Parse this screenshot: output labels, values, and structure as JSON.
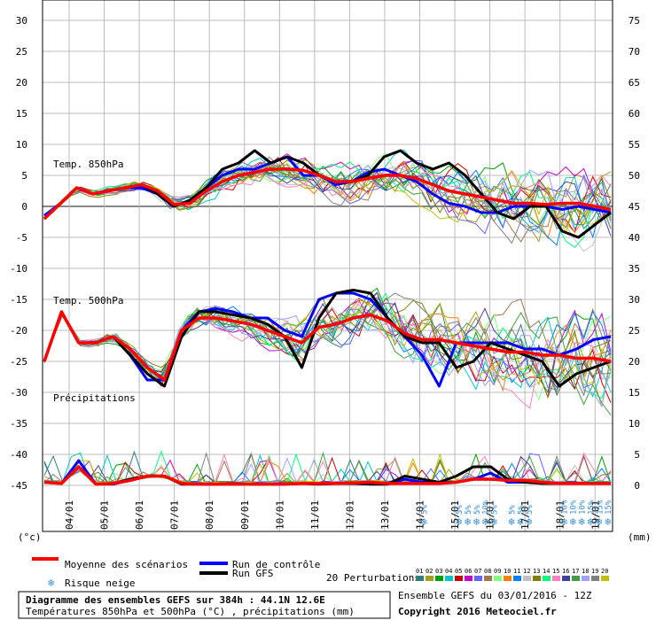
{
  "chart_data": {
    "type": "line",
    "left_axis_ticks": [
      "30",
      "25",
      "20",
      "15",
      "10",
      "5",
      "0",
      "-5",
      "-10",
      "-15",
      "-20",
      "-25",
      "-30",
      "-35",
      "-40",
      "-45"
    ],
    "right_axis_ticks": [
      "75",
      "70",
      "65",
      "60",
      "55",
      "50",
      "45",
      "40",
      "35",
      "30",
      "25",
      "20",
      "15",
      "10",
      "5",
      "0"
    ],
    "x_tick_labels": [
      "04/01",
      "05/01",
      "06/01",
      "07/01",
      "08/01",
      "09/01",
      "10/01",
      "11/01",
      "12/01",
      "13/01",
      "14/01",
      "15/01",
      "16/01",
      "17/01",
      "18/01",
      "19/01"
    ],
    "left_unit": "(°c)",
    "right_unit": "(mm)",
    "section_labels": {
      "t850": "Temp. 850hPa",
      "t500": "Temp. 500hPa",
      "precip": "Précipitations"
    },
    "snow_risk": [
      {
        "day": 10.0,
        "pct": "5%"
      },
      {
        "day": 11.0,
        "pct": "5%"
      },
      {
        "day": 11.25,
        "pct": "5%"
      },
      {
        "day": 11.5,
        "pct": "5%"
      },
      {
        "day": 11.75,
        "pct": "10%"
      },
      {
        "day": 12.0,
        "pct": "5%"
      },
      {
        "day": 12.5,
        "pct": "5%"
      },
      {
        "day": 12.75,
        "pct": "5%"
      },
      {
        "day": 13.0,
        "pct": "5%"
      },
      {
        "day": 14.0,
        "pct": "10%"
      },
      {
        "day": 14.25,
        "pct": "10%"
      },
      {
        "day": 14.5,
        "pct": "10%"
      },
      {
        "day": 14.75,
        "pct": "15%"
      },
      {
        "day": 15.0,
        "pct": "15%"
      },
      {
        "day": 15.25,
        "pct": "15%"
      }
    ],
    "series": [
      {
        "name": "Moyenne des scénarios",
        "color": "#ff0000",
        "t850": [
          -2,
          0.5,
          3,
          2,
          2.5,
          3,
          3.5,
          2.5,
          0.3,
          0.5,
          2.5,
          4,
          5,
          5.5,
          6,
          6,
          5.8,
          5,
          4,
          4,
          4.5,
          5,
          5,
          4.5,
          3.5,
          2.5,
          2,
          1.5,
          1,
          0.5,
          0.5,
          0.3,
          0.5,
          0.5,
          0,
          -0.5
        ],
        "t500": [
          -25,
          -17,
          -22,
          -22,
          -21,
          -23,
          -26,
          -28,
          -20,
          -18,
          -18,
          -18.5,
          -19,
          -20,
          -21,
          -22,
          -19.5,
          -19,
          -18,
          -17.5,
          -18.5,
          -20.5,
          -21.5,
          -21.5,
          -22,
          -22.5,
          -23,
          -23.5,
          -23.5,
          -24,
          -24,
          -24.5,
          -24.5,
          -25
        ],
        "precip": [
          0.5,
          0.3,
          3,
          0.2,
          0.3,
          0.8,
          1.5,
          1.5,
          0.3,
          0.2,
          0.2,
          0.2,
          0.2,
          0.2,
          0.2,
          0.3,
          0.3,
          0.3,
          0.4,
          0.5,
          0.3,
          0.3,
          0.3,
          0.3,
          0.5,
          1,
          1,
          0.8,
          0.8,
          0.5,
          0.3,
          0.3,
          0.3,
          0.3
        ]
      },
      {
        "name": "Run de contrôle",
        "color": "#0000ff",
        "t850": [
          -1.5,
          0.5,
          3,
          2,
          2.5,
          3,
          3,
          2,
          0,
          1,
          3,
          5,
          6,
          6,
          7,
          8,
          5,
          5,
          3.5,
          4,
          5.5,
          6,
          5,
          4,
          2,
          0.5,
          0,
          -1,
          -1,
          0,
          0,
          0,
          -0.5,
          0,
          -0.5,
          -1
        ],
        "t500": [
          -25,
          -17,
          -22,
          -22,
          -21,
          -24,
          -28,
          -28,
          -20,
          -17,
          -16.5,
          -17,
          -18,
          -18,
          -20,
          -21,
          -15,
          -14,
          -14,
          -15,
          -18,
          -21,
          -24,
          -29,
          -22,
          -22,
          -22,
          -22,
          -23,
          -23,
          -24,
          -23,
          -21.5,
          -21
        ],
        "precip": [
          0.5,
          0.3,
          4,
          0.2,
          0.2,
          0.8,
          1.5,
          1.5,
          0.2,
          0.2,
          0.2,
          0.2,
          0.2,
          0.2,
          0.2,
          0.3,
          0.2,
          0.3,
          0.3,
          0.2,
          0.2,
          1,
          0.5,
          0.5,
          0.5,
          1,
          2,
          0.5,
          0.5,
          0.5,
          0.3,
          0.3,
          0.3,
          0.3
        ]
      },
      {
        "name": "Run GFS",
        "color": "#000000",
        "t850": [
          -2,
          0.5,
          3,
          2,
          2.5,
          3,
          3.5,
          2,
          0,
          1,
          3,
          6,
          7,
          9,
          7,
          8,
          7,
          5,
          4,
          4,
          5,
          8,
          9,
          7,
          6,
          7,
          5,
          2,
          -1,
          -2,
          0,
          0,
          -4,
          -5,
          -3,
          -1
        ],
        "t500": [
          -25,
          -17,
          -22,
          -22,
          -21,
          -24,
          -27,
          -29,
          -21,
          -17,
          -17,
          -17.5,
          -18,
          -19,
          -21,
          -26,
          -18,
          -14,
          -13.5,
          -14,
          -18,
          -21,
          -22,
          -22,
          -26,
          -25,
          -22,
          -23,
          -24,
          -25,
          -29,
          -27,
          -26,
          -25
        ],
        "precip": [
          0.5,
          0.3,
          3,
          0.2,
          0.3,
          1,
          1.5,
          1.5,
          0.2,
          0.2,
          0.2,
          0.3,
          0.2,
          0.2,
          0.2,
          0.3,
          0.2,
          0.3,
          0.3,
          0.2,
          0.2,
          1.5,
          1,
          0.5,
          1.5,
          3,
          3,
          1,
          0.5,
          0.3,
          0.3,
          0.3,
          0.3,
          0.3
        ]
      }
    ],
    "legend": {
      "mean": "Moyenne des scénarios",
      "control": "Run de contrôle",
      "gfs": "Run GFS",
      "snow": "Risque neige",
      "perturb": "20 Perturbations",
      "perturb_nums": [
        "01",
        "02",
        "03",
        "04",
        "05",
        "06",
        "07",
        "08",
        "09",
        "10",
        "11",
        "12",
        "13",
        "14",
        "15",
        "16",
        "17",
        "18",
        "19",
        "20"
      ],
      "perturb_colors": [
        "#2f7f7f",
        "#a0a020",
        "#00a000",
        "#00c8c8",
        "#c80000",
        "#c800c8",
        "#6464ff",
        "#a07850",
        "#80ff80",
        "#ff8000",
        "#0080ff",
        "#c0c0c0",
        "#808000",
        "#00ff80",
        "#ff80c0",
        "#4040a0",
        "#40a040",
        "#a0a0ff",
        "#808080",
        "#c0c000"
      ]
    },
    "title_box": {
      "line1": "Diagramme des ensembles GEFS sur 384h : 44.1N 12.6E",
      "line2": "Températures 850hPa et 500hPa (°C) , précipitations (mm)"
    },
    "run_info": "Ensemble GEFS du 03/01/2016 - 12Z",
    "copyright": "Copyright 2016 Meteociel.fr"
  }
}
